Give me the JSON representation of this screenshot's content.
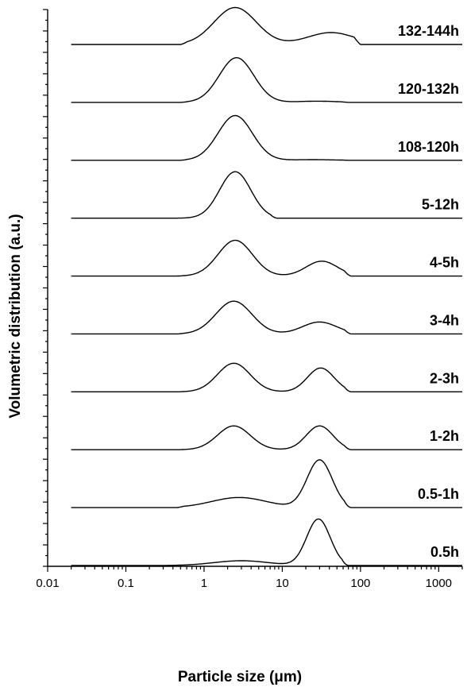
{
  "chart_data": {
    "type": "line",
    "xlabel": "Particle size (μm)",
    "ylabel": "Volumetric distribution (a.u.)",
    "x_scale": "log",
    "xlim": [
      0.01,
      2000
    ],
    "x_ticks": [
      0.01,
      0.1,
      1,
      10,
      100,
      1000
    ],
    "x_tick_labels": [
      "0.01",
      "0.1",
      "1",
      "10",
      "100",
      "1000"
    ],
    "y_tick_labels_shown": false,
    "grid": false,
    "legend": "none",
    "series": [
      {
        "name": "132-144h",
        "line_start_x": 0.02,
        "peaks": [
          {
            "center": 2.5,
            "width_log10": 0.27,
            "height": 0.62
          },
          {
            "center": 42,
            "width_log10": 0.3,
            "height": 0.2
          }
        ],
        "support": [
          0.5,
          100
        ]
      },
      {
        "name": "120-132h",
        "line_start_x": 0.02,
        "peaks": [
          {
            "center": 2.6,
            "width_log10": 0.22,
            "height": 0.75
          },
          {
            "center": 28,
            "width_log10": 0.25,
            "height": 0.02
          }
        ],
        "support": [
          0.5,
          70
        ]
      },
      {
        "name": "108-120h",
        "line_start_x": 0.02,
        "peaks": [
          {
            "center": 2.5,
            "width_log10": 0.22,
            "height": 0.75
          },
          {
            "center": 25,
            "width_log10": 0.25,
            "height": 0.01
          }
        ],
        "support": [
          0.5,
          70
        ]
      },
      {
        "name": "5-12h",
        "line_start_x": 0.02,
        "peaks": [
          {
            "center": 2.5,
            "width_log10": 0.2,
            "height": 0.78
          }
        ],
        "support": [
          0.45,
          8.5
        ]
      },
      {
        "name": "4-5h",
        "line_start_x": 0.02,
        "peaks": [
          {
            "center": 2.5,
            "width_log10": 0.22,
            "height": 0.6
          },
          {
            "center": 32,
            "width_log10": 0.2,
            "height": 0.25
          }
        ],
        "support": [
          0.45,
          75
        ]
      },
      {
        "name": "3-4h",
        "line_start_x": 0.02,
        "peaks": [
          {
            "center": 2.4,
            "width_log10": 0.23,
            "height": 0.55
          },
          {
            "center": 30,
            "width_log10": 0.22,
            "height": 0.2
          }
        ],
        "support": [
          0.45,
          75
        ]
      },
      {
        "name": "2-3h",
        "line_start_x": 0.02,
        "peaks": [
          {
            "center": 2.4,
            "width_log10": 0.21,
            "height": 0.48
          },
          {
            "center": 31,
            "width_log10": 0.17,
            "height": 0.4
          }
        ],
        "support": [
          0.45,
          75
        ]
      },
      {
        "name": "1-2h",
        "line_start_x": 0.02,
        "peaks": [
          {
            "center": 2.4,
            "width_log10": 0.21,
            "height": 0.4
          },
          {
            "center": 30,
            "width_log10": 0.17,
            "height": 0.4
          }
        ],
        "support": [
          0.45,
          75
        ]
      },
      {
        "name": "0.5-1h",
        "line_start_x": 0.02,
        "peaks": [
          {
            "center": 2.8,
            "width_log10": 0.35,
            "height": 0.17
          },
          {
            "center": 30,
            "width_log10": 0.16,
            "height": 0.8
          }
        ],
        "support": [
          0.45,
          75
        ]
      },
      {
        "name": "0.5h",
        "line_start_x": 0.02,
        "peaks": [
          {
            "center": 3.0,
            "width_log10": 0.35,
            "height": 0.08
          },
          {
            "center": 29,
            "width_log10": 0.15,
            "height": 0.78
          }
        ],
        "support": [
          0.15,
          70
        ]
      }
    ]
  }
}
